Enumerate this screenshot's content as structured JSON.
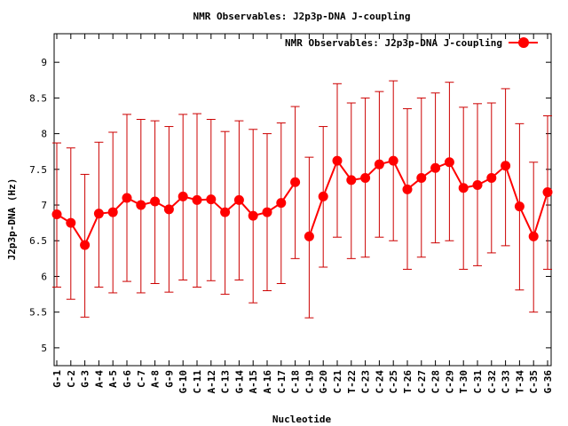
{
  "chart_data": {
    "type": "line",
    "title": "NMR Observables: J2p3p-DNA J-coupling",
    "xlabel": "Nucleotide",
    "ylabel": "J2p3p-DNA (Hz)",
    "ylim": [
      4.75,
      9.4
    ],
    "yticks": [
      5,
      5.5,
      6,
      6.5,
      7,
      7.5,
      8,
      8.5,
      9
    ],
    "legend_position": "top-right",
    "grid": false,
    "color": "#ff0000",
    "errorbar_color": "#cc0000",
    "categories": [
      "G-1",
      "C-2",
      "G-3",
      "A-4",
      "A-5",
      "G-6",
      "C-7",
      "A-8",
      "G-9",
      "G-10",
      "C-11",
      "A-12",
      "C-13",
      "G-14",
      "A-15",
      "A-16",
      "C-17",
      "C-18",
      "C-19",
      "G-20",
      "C-21",
      "T-22",
      "C-23",
      "C-24",
      "C-25",
      "T-26",
      "C-27",
      "C-28",
      "C-29",
      "T-30",
      "C-31",
      "C-32",
      "C-33",
      "T-34",
      "C-35",
      "G-36"
    ],
    "series": [
      {
        "name": "NMR Observables: J2p3p-DNA J-coupling",
        "segments": [
          [
            0,
            17
          ],
          [
            18,
            35
          ]
        ],
        "values": [
          6.87,
          6.75,
          6.44,
          6.88,
          6.9,
          7.1,
          7.0,
          7.05,
          6.94,
          7.12,
          7.07,
          7.08,
          6.9,
          7.07,
          6.85,
          6.9,
          7.03,
          7.32,
          6.56,
          7.12,
          7.62,
          7.35,
          7.38,
          7.57,
          7.62,
          7.22,
          7.38,
          7.52,
          7.6,
          7.24,
          7.28,
          7.38,
          7.55,
          6.98,
          6.56,
          7.18
        ],
        "lower": [
          5.85,
          5.68,
          5.43,
          5.85,
          5.77,
          5.93,
          5.77,
          5.9,
          5.78,
          5.95,
          5.85,
          5.94,
          5.75,
          5.95,
          5.63,
          5.8,
          5.9,
          6.25,
          5.42,
          6.13,
          6.55,
          6.25,
          6.27,
          6.55,
          6.5,
          6.1,
          6.27,
          6.47,
          6.5,
          6.1,
          6.15,
          6.33,
          6.43,
          5.81,
          5.5,
          6.1
        ],
        "upper": [
          7.87,
          7.8,
          7.43,
          7.88,
          8.02,
          8.27,
          8.2,
          8.18,
          8.1,
          8.27,
          8.28,
          8.2,
          8.03,
          8.18,
          8.06,
          8.0,
          8.15,
          8.38,
          7.67,
          8.1,
          8.7,
          8.43,
          8.5,
          8.59,
          8.74,
          8.35,
          8.5,
          8.57,
          8.72,
          8.37,
          8.42,
          8.43,
          8.63,
          8.14,
          7.6,
          8.25
        ]
      }
    ]
  }
}
